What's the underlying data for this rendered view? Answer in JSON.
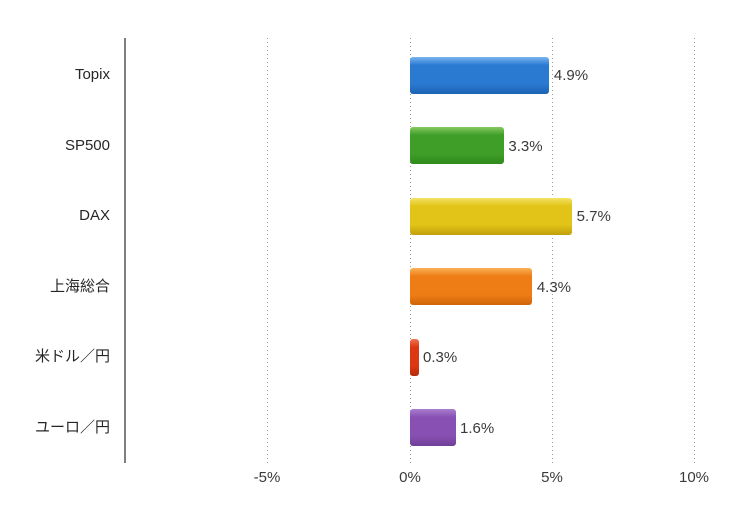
{
  "chart_data": {
    "type": "bar",
    "orientation": "horizontal",
    "title": "",
    "categories": [
      "Topix",
      "SP500",
      "DAX",
      "上海総合",
      "米ドル／円",
      "ユーロ／円"
    ],
    "values": [
      4.9,
      3.3,
      5.7,
      4.3,
      0.3,
      1.6
    ],
    "value_labels": [
      "4.9%",
      "3.3%",
      "5.7%",
      "4.3%",
      "0.3%",
      "1.6%"
    ],
    "bar_colors": [
      {
        "name": "blue",
        "top": "#7ab5f0",
        "main": "#2a7ad2",
        "dark": "#1d62b2"
      },
      {
        "name": "green",
        "top": "#86c960",
        "main": "#3f9e28",
        "dark": "#2f8a1c"
      },
      {
        "name": "yellow",
        "top": "#f4e365",
        "main": "#e2c318",
        "dark": "#bfa00a"
      },
      {
        "name": "orange",
        "top": "#f9b257",
        "main": "#ee7d16",
        "dark": "#d06407"
      },
      {
        "name": "red",
        "top": "#ef7450",
        "main": "#dc3912",
        "dark": "#b52b0b"
      },
      {
        "name": "purple",
        "top": "#ab7fd0",
        "main": "#8850b2",
        "dark": "#6f3f96"
      }
    ],
    "xticks": [
      {
        "value": -5,
        "label": "-5%"
      },
      {
        "value": 0,
        "label": "0%"
      },
      {
        "value": 5,
        "label": "5%"
      },
      {
        "value": 10,
        "label": "10%"
      }
    ],
    "xlim": [
      -10,
      10
    ],
    "grid": "dotted-vertical-gridlines",
    "legend": "none",
    "background": "#ffffff",
    "axis_line_color": "#7f7f7f",
    "gridline_color": "#9b9b9b",
    "label_text_color": "#3a3a3a"
  }
}
